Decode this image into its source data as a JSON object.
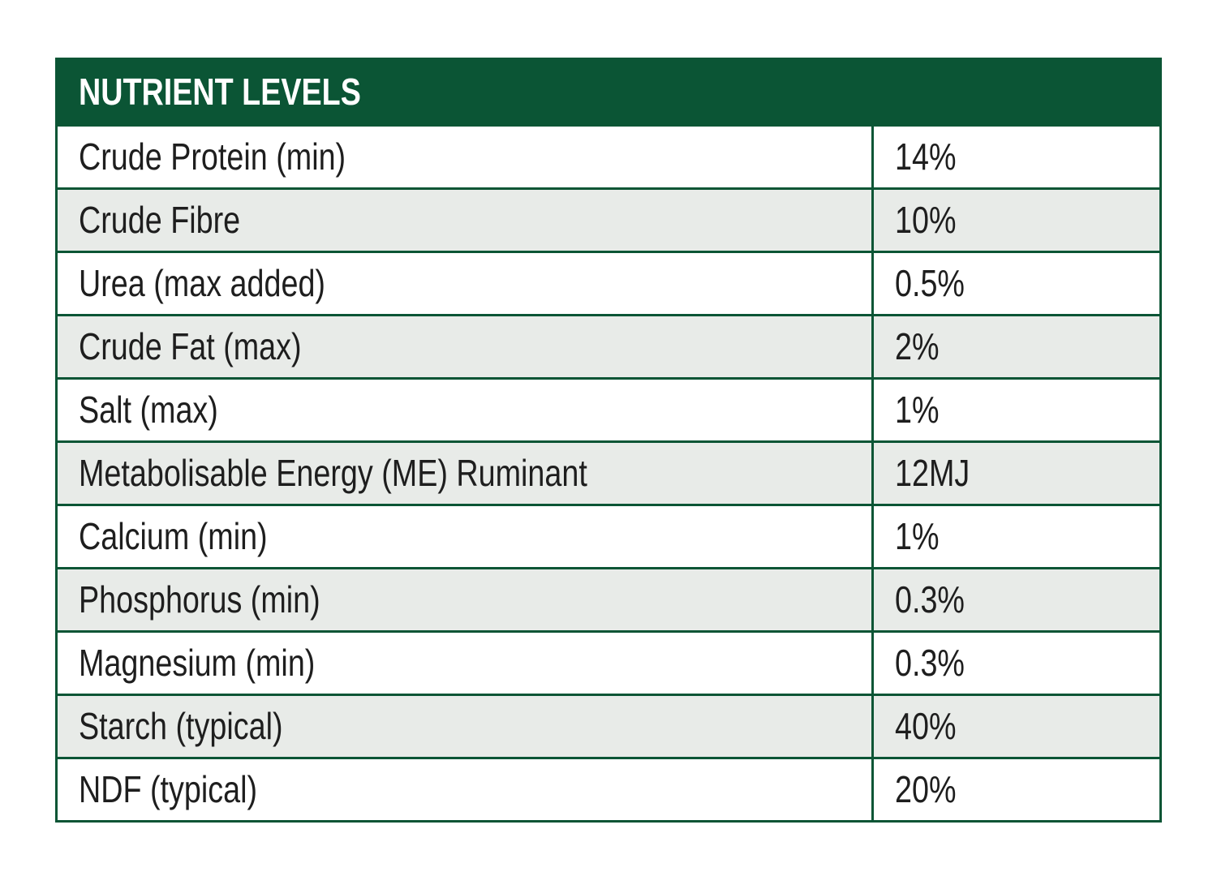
{
  "table": {
    "title": "NUTRIENT LEVELS",
    "rows": [
      [
        "Crude Protein (min)",
        "14%"
      ],
      [
        "Crude Fibre",
        "10%"
      ],
      [
        "Urea (max added)",
        "0.5%"
      ],
      [
        "Crude Fat (max)",
        "2%"
      ],
      [
        "Salt (max)",
        "1%"
      ],
      [
        "Metabolisable Energy (ME) Ruminant",
        "12MJ"
      ],
      [
        "Calcium (min)",
        "1%"
      ],
      [
        "Phosphorus (min)",
        "0.3%"
      ],
      [
        "Magnesium (min)",
        "0.3%"
      ],
      [
        "Starch (typical)",
        "40%"
      ],
      [
        "NDF (typical)",
        "20%"
      ]
    ]
  }
}
